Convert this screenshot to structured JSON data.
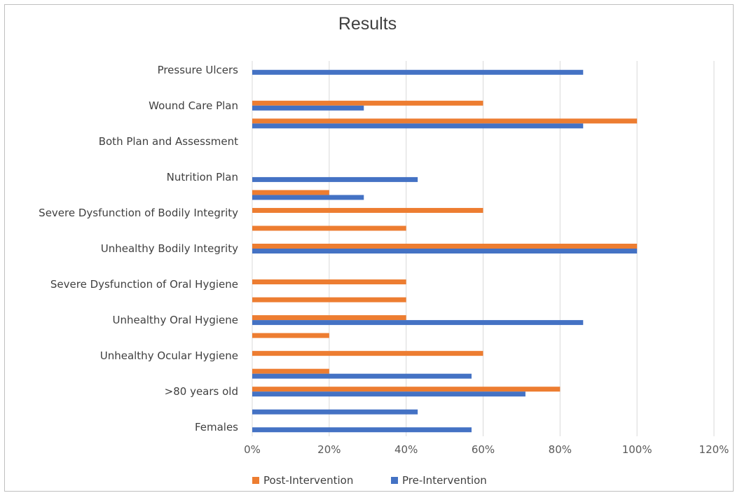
{
  "chart_data": {
    "type": "bar",
    "orientation": "horizontal",
    "title": "Results",
    "categories": [
      "Pressure Ulcers",
      "",
      "Wound Care Plan",
      "",
      "Both Plan and Assessment",
      "",
      "Nutrition Plan",
      "",
      "Severe Dysfunction of Bodily Integrity",
      "",
      "Unhealthy Bodily Integrity",
      "",
      "Severe Dysfunction of Oral Hygiene",
      "",
      "Unhealthy Oral Hygiene",
      "",
      "Unhealthy Ocular Hygiene",
      "",
      ">80 years old",
      "",
      "Females"
    ],
    "series": [
      {
        "name": "Post-Intervention",
        "color": "#ed7d31",
        "values": [
          0,
          0,
          60,
          100,
          0,
          0,
          0,
          20,
          60,
          40,
          100,
          0,
          40,
          40,
          40,
          20,
          60,
          20,
          80,
          0,
          0
        ]
      },
      {
        "name": "Pre-Intervention",
        "color": "#4472c4",
        "values": [
          86,
          0,
          29,
          86,
          0,
          0,
          43,
          29,
          0,
          0,
          100,
          0,
          0,
          0,
          86,
          0,
          0,
          57,
          71,
          43,
          57
        ]
      }
    ],
    "xlim": [
      0,
      120
    ],
    "xticks": [
      "0%",
      "20%",
      "40%",
      "60%",
      "80%",
      "100%",
      "120%"
    ],
    "xtick_values": [
      0,
      20,
      40,
      60,
      80,
      100,
      120
    ],
    "grid": true,
    "legend_position": "bottom"
  }
}
